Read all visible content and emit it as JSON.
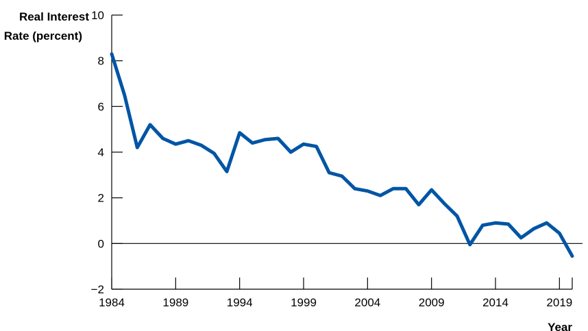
{
  "chart_data": {
    "type": "line",
    "ylabel_line1": "Real Interest",
    "ylabel_line2": "Rate (percent)",
    "xlabel": "Year",
    "ylim": [
      -2,
      10
    ],
    "yticks": [
      "10",
      "8",
      "6",
      "4",
      "2",
      "0",
      "−2"
    ],
    "ytick_values": [
      10,
      8,
      6,
      4,
      2,
      0,
      -2
    ],
    "xlim": [
      1984,
      2020
    ],
    "xticks": [
      "1984",
      "1989",
      "1994",
      "1999",
      "2004",
      "2009",
      "2014",
      "2019"
    ],
    "xtick_values": [
      1984,
      1989,
      1994,
      1999,
      2004,
      2009,
      2014,
      2019
    ],
    "series": [
      {
        "color": "#0055a5",
        "x": [
          1984,
          1985,
          1986,
          1987,
          1988,
          1989,
          1990,
          1991,
          1992,
          1993,
          1994,
          1995,
          1996,
          1997,
          1998,
          1999,
          2000,
          2001,
          2002,
          2003,
          2004,
          2005,
          2006,
          2007,
          2008,
          2009,
          2010,
          2011,
          2012,
          2013,
          2014,
          2015,
          2016,
          2017,
          2018,
          2019,
          2020
        ],
        "values": [
          8.3,
          6.5,
          4.2,
          5.2,
          4.6,
          4.35,
          4.5,
          4.3,
          3.95,
          3.15,
          4.85,
          4.4,
          4.55,
          4.6,
          4.0,
          4.35,
          4.25,
          3.1,
          2.95,
          2.4,
          2.3,
          2.1,
          2.4,
          2.4,
          1.7,
          2.35,
          1.75,
          1.2,
          -0.05,
          0.8,
          0.9,
          0.85,
          0.25,
          0.65,
          0.9,
          0.45,
          -0.55
        ]
      }
    ],
    "zero_line": true
  }
}
